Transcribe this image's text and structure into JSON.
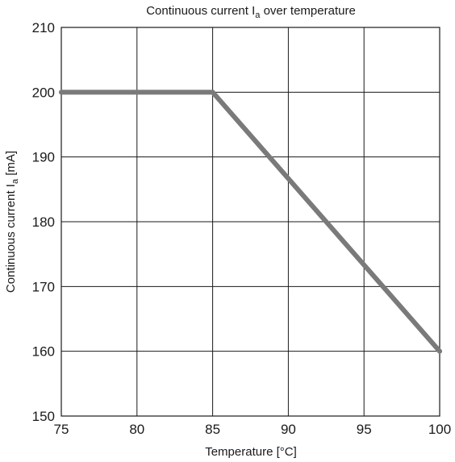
{
  "chart_data": {
    "type": "line",
    "title": "Continuous current I",
    "title_sub": "a",
    "title_rest": " over temperature",
    "xlabel": "Temperature [°C]",
    "ylabel": "Continuous current I",
    "ylabel_sub": "a",
    "ylabel_rest": " [mA]",
    "xlim": [
      75,
      100
    ],
    "ylim": [
      150,
      210
    ],
    "x_ticks": [
      75,
      80,
      85,
      90,
      95,
      100
    ],
    "y_ticks": [
      150,
      160,
      170,
      180,
      190,
      200,
      210
    ],
    "grid": true,
    "series": [
      {
        "x": [
          75,
          85,
          100
        ],
        "y": [
          200,
          200,
          160
        ],
        "color": "#7a7a7a"
      }
    ]
  }
}
